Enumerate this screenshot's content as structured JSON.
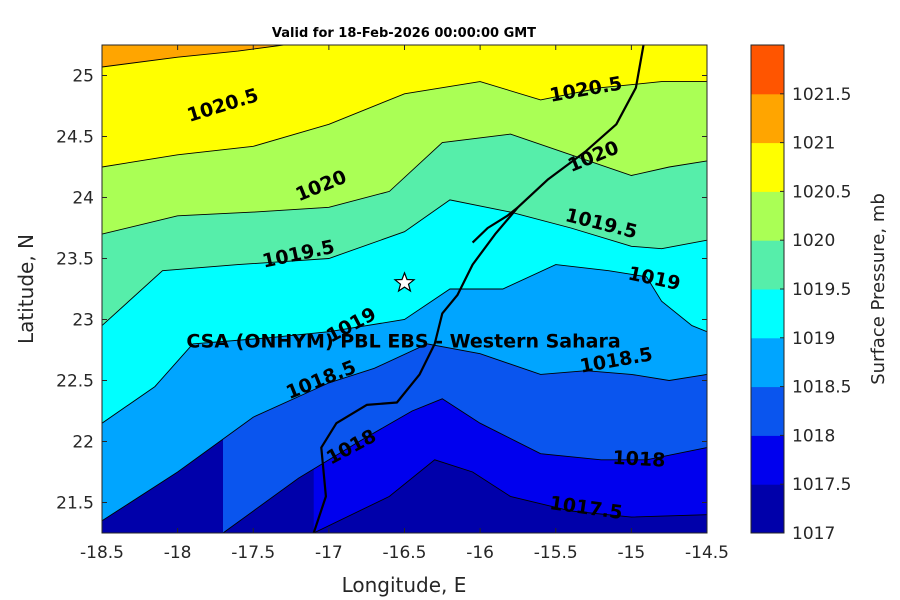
{
  "chart_data": {
    "type": "contour",
    "title": "Valid for 18-Feb-2026 00:00:00 GMT",
    "xlabel": "Longitude, E",
    "ylabel": "Latitude, N",
    "xlim": [
      -18.5,
      -14.5
    ],
    "ylim": [
      21.25,
      25.25
    ],
    "xticks": [
      "-18.5",
      "-18",
      "-17.5",
      "-17",
      "-16.5",
      "-16",
      "-15.5",
      "-15",
      "-14.5"
    ],
    "yticks": [
      "21.5",
      "22",
      "22.5",
      "23",
      "23.5",
      "24",
      "24.5",
      "25"
    ],
    "xtick_values": [
      -18.5,
      -18,
      -17.5,
      -17,
      -16.5,
      -16,
      -15.5,
      -15,
      -14.5
    ],
    "ytick_values": [
      21.5,
      22,
      22.5,
      23,
      23.5,
      24,
      24.5,
      25
    ],
    "contour_levels": [
      1017,
      1017.5,
      1018,
      1018.5,
      1019,
      1019.5,
      1020,
      1020.5,
      1021,
      1021.5
    ],
    "band_colors": [
      "#0000aa",
      "#0000ee",
      "#0a55ee",
      "#00a5ff",
      "#00ffff",
      "#56eeaa",
      "#aaff55",
      "#ffff00",
      "#ffa500",
      "#ff5500"
    ],
    "contour_lines": [
      {
        "level": 1017.5,
        "points": [
          [
            -17.1,
            21.25
          ],
          [
            -16.6,
            21.55
          ],
          [
            -16.3,
            21.85
          ],
          [
            -16.05,
            21.75
          ],
          [
            -15.8,
            21.55
          ],
          [
            -15.4,
            21.43
          ],
          [
            -15.0,
            21.38
          ],
          [
            -14.5,
            21.4
          ]
        ]
      },
      {
        "level": 1018,
        "points": [
          [
            -17.7,
            21.25
          ],
          [
            -17.2,
            21.7
          ],
          [
            -16.8,
            22.0
          ],
          [
            -16.45,
            22.25
          ],
          [
            -16.25,
            22.35
          ],
          [
            -16.0,
            22.15
          ],
          [
            -15.6,
            21.9
          ],
          [
            -15.2,
            21.85
          ],
          [
            -14.9,
            21.85
          ],
          [
            -14.5,
            21.95
          ]
        ]
      },
      {
        "level": 1018.5,
        "points": [
          [
            -18.5,
            21.35
          ],
          [
            -18.0,
            21.75
          ],
          [
            -17.5,
            22.2
          ],
          [
            -17.0,
            22.48
          ],
          [
            -16.7,
            22.6
          ],
          [
            -16.35,
            22.8
          ],
          [
            -16.0,
            22.72
          ],
          [
            -15.6,
            22.55
          ],
          [
            -15.3,
            22.58
          ],
          [
            -15.0,
            22.55
          ],
          [
            -14.75,
            22.5
          ],
          [
            -14.5,
            22.55
          ]
        ]
      },
      {
        "level": 1019,
        "points": [
          [
            -18.5,
            22.15
          ],
          [
            -18.15,
            22.45
          ],
          [
            -17.9,
            22.8
          ],
          [
            -17.4,
            22.85
          ],
          [
            -17.0,
            22.9
          ],
          [
            -16.5,
            23.0
          ],
          [
            -16.2,
            23.25
          ],
          [
            -15.85,
            23.25
          ],
          [
            -15.5,
            23.45
          ],
          [
            -15.15,
            23.4
          ],
          [
            -14.9,
            23.35
          ],
          [
            -14.8,
            23.15
          ],
          [
            -14.6,
            22.95
          ],
          [
            -14.5,
            22.9
          ]
        ]
      },
      {
        "level": 1019.5,
        "points": [
          [
            -18.5,
            22.95
          ],
          [
            -18.1,
            23.4
          ],
          [
            -17.6,
            23.45
          ],
          [
            -17.0,
            23.5
          ],
          [
            -16.5,
            23.72
          ],
          [
            -16.2,
            23.98
          ],
          [
            -15.8,
            23.88
          ],
          [
            -15.4,
            23.75
          ],
          [
            -15.0,
            23.6
          ],
          [
            -14.8,
            23.58
          ],
          [
            -14.5,
            23.65
          ]
        ]
      },
      {
        "level": 1020,
        "points": [
          [
            -18.5,
            23.7
          ],
          [
            -18.0,
            23.85
          ],
          [
            -17.5,
            23.88
          ],
          [
            -17.0,
            23.92
          ],
          [
            -16.6,
            24.05
          ],
          [
            -16.25,
            24.45
          ],
          [
            -15.8,
            24.52
          ],
          [
            -15.4,
            24.35
          ],
          [
            -15.0,
            24.18
          ],
          [
            -14.75,
            24.25
          ],
          [
            -14.5,
            24.3
          ]
        ]
      },
      {
        "level": 1020.5,
        "points": [
          [
            -18.5,
            24.25
          ],
          [
            -18.0,
            24.35
          ],
          [
            -17.5,
            24.42
          ],
          [
            -17.0,
            24.6
          ],
          [
            -16.5,
            24.85
          ],
          [
            -16.0,
            24.95
          ],
          [
            -15.6,
            24.8
          ],
          [
            -15.2,
            24.9
          ],
          [
            -14.8,
            24.95
          ],
          [
            -14.5,
            24.95
          ]
        ]
      },
      {
        "level": 1021,
        "points": [
          [
            -18.5,
            25.07
          ],
          [
            -18.0,
            25.15
          ],
          [
            -17.6,
            25.2
          ],
          [
            -17.3,
            25.25
          ]
        ]
      }
    ],
    "contour_labels": [
      {
        "text": "1020.5",
        "x": -17.7,
        "y": 24.75,
        "angle": -17
      },
      {
        "text": "1020.5",
        "x": -15.3,
        "y": 24.88,
        "angle": -10
      },
      {
        "text": "1020",
        "x": -17.05,
        "y": 24.09,
        "angle": -22
      },
      {
        "text": "1020",
        "x": -15.25,
        "y": 24.33,
        "angle": -22
      },
      {
        "text": "1019.5",
        "x": -17.2,
        "y": 23.53,
        "angle": -12
      },
      {
        "text": "1019.5",
        "x": -15.2,
        "y": 23.78,
        "angle": 14
      },
      {
        "text": "1019",
        "x": -14.85,
        "y": 23.33,
        "angle": 12
      },
      {
        "text": "1019",
        "x": -16.85,
        "y": 22.95,
        "angle": -28
      },
      {
        "text": "1018.5",
        "x": -17.05,
        "y": 22.5,
        "angle": -22
      },
      {
        "text": "1018.5",
        "x": -15.1,
        "y": 22.66,
        "angle": -10
      },
      {
        "text": "1018",
        "x": -16.85,
        "y": 21.95,
        "angle": -28
      },
      {
        "text": "1018",
        "x": -14.95,
        "y": 21.85,
        "angle": 3
      },
      {
        "text": "1017.5",
        "x": -15.3,
        "y": 21.45,
        "angle": 8
      }
    ],
    "coastline": [
      [
        -17.1,
        21.25
      ],
      [
        -17.02,
        21.55
      ],
      [
        -17.05,
        21.95
      ],
      [
        -16.95,
        22.15
      ],
      [
        -16.75,
        22.3
      ],
      [
        -16.55,
        22.32
      ],
      [
        -16.4,
        22.55
      ],
      [
        -16.3,
        22.8
      ],
      [
        -16.25,
        23.05
      ],
      [
        -16.15,
        23.2
      ],
      [
        -16.05,
        23.45
      ],
      [
        -15.9,
        23.7
      ],
      [
        -15.75,
        23.92
      ],
      [
        -15.55,
        24.15
      ],
      [
        -15.3,
        24.38
      ],
      [
        -15.1,
        24.6
      ],
      [
        -14.97,
        24.9
      ],
      [
        -14.92,
        25.25
      ]
    ],
    "peninsula": [
      [
        -15.75,
        23.92
      ],
      [
        -15.82,
        23.85
      ],
      [
        -15.95,
        23.75
      ],
      [
        -16.05,
        23.63
      ]
    ],
    "station": {
      "name": "CSA (ONHYM) PBL EBS - Western Sahara",
      "lon": -16.5,
      "lat": 23.3
    },
    "colorbar": {
      "label": "Surface Pressure, mb",
      "ticks": [
        "1017",
        "1017.5",
        "1018",
        "1018.5",
        "1019",
        "1019.5",
        "1020",
        "1020.5",
        "1021",
        "1021.5"
      ],
      "colors": [
        "#0000aa",
        "#0000ee",
        "#0a55ee",
        "#00a5ff",
        "#00ffff",
        "#56eeaa",
        "#aaff55",
        "#ffff00",
        "#ffa500",
        "#ff5500"
      ]
    },
    "grid": false
  }
}
